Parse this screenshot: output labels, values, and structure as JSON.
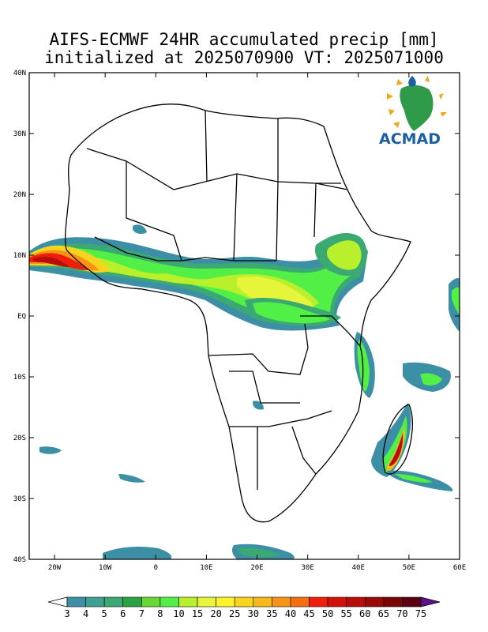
{
  "header": {
    "line1": "AIFS-ECMWF 24HR accumulated precip [mm]",
    "line2": "initialized at 2025070900 VT: 2025071000"
  },
  "logo": {
    "text": "ACMAD",
    "color": "#1a5fa0"
  },
  "axes": {
    "lat_labels": [
      "40N",
      "30N",
      "20N",
      "10N",
      "EQ",
      "10S",
      "20S",
      "30S",
      "40S"
    ],
    "lon_labels": [
      "20W",
      "10W",
      "0",
      "10E",
      "20E",
      "30E",
      "40E",
      "50E",
      "60E"
    ],
    "lat_range": [
      -40,
      40
    ],
    "lon_range": [
      -25,
      60
    ]
  },
  "colorbar": {
    "labels": [
      "3",
      "4",
      "5",
      "6",
      "7",
      "8",
      "10",
      "15",
      "20",
      "25",
      "30",
      "35",
      "40",
      "45",
      "50",
      "55",
      "60",
      "65",
      "70",
      "75"
    ],
    "colors": [
      "#ffffff",
      "#3d8fa6",
      "#3ea08e",
      "#3aaa72",
      "#2aa342",
      "#6ad832",
      "#52f046",
      "#b8f02c",
      "#e6f43a",
      "#fff22a",
      "#f7d41e",
      "#f6b81a",
      "#f79416",
      "#f76e10",
      "#ee1e0c",
      "#d2120a",
      "#b80c0a",
      "#9a0808",
      "#7a0404",
      "#5a0012",
      "#5e1290"
    ]
  }
}
